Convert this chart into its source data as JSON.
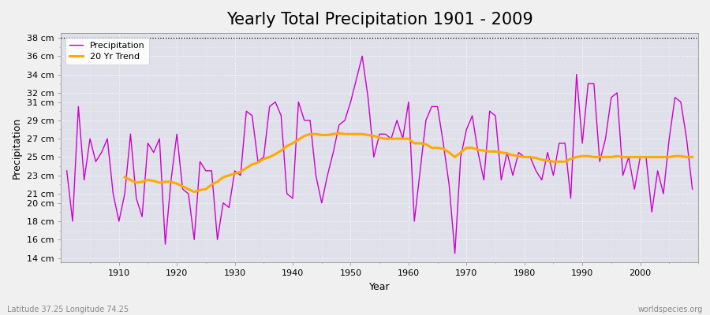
{
  "title": "Yearly Total Precipitation 1901 - 2009",
  "xlabel": "Year",
  "ylabel": "Precipitation",
  "subtitle_left": "Latitude 37.25 Longitude 74.25",
  "subtitle_right": "worldspecies.org",
  "years": [
    1901,
    1902,
    1903,
    1904,
    1905,
    1906,
    1907,
    1908,
    1909,
    1910,
    1911,
    1912,
    1913,
    1914,
    1915,
    1916,
    1917,
    1918,
    1919,
    1920,
    1921,
    1922,
    1923,
    1924,
    1925,
    1926,
    1927,
    1928,
    1929,
    1930,
    1931,
    1932,
    1933,
    1934,
    1935,
    1936,
    1937,
    1938,
    1939,
    1940,
    1941,
    1942,
    1943,
    1944,
    1945,
    1946,
    1947,
    1948,
    1949,
    1950,
    1951,
    1952,
    1953,
    1954,
    1955,
    1956,
    1957,
    1958,
    1959,
    1960,
    1961,
    1962,
    1963,
    1964,
    1965,
    1966,
    1967,
    1968,
    1969,
    1970,
    1971,
    1972,
    1973,
    1974,
    1975,
    1976,
    1977,
    1978,
    1979,
    1980,
    1981,
    1982,
    1983,
    1984,
    1985,
    1986,
    1987,
    1988,
    1989,
    1990,
    1991,
    1992,
    1993,
    1994,
    1995,
    1996,
    1997,
    1998,
    1999,
    2000,
    2001,
    2002,
    2003,
    2004,
    2005,
    2006,
    2007,
    2008,
    2009
  ],
  "precipitation": [
    23.5,
    18.0,
    30.5,
    22.5,
    27.0,
    24.5,
    25.5,
    27.0,
    21.0,
    18.0,
    21.0,
    27.5,
    20.5,
    18.5,
    26.5,
    25.5,
    27.0,
    15.5,
    22.5,
    27.5,
    21.5,
    21.0,
    16.0,
    24.5,
    23.5,
    23.5,
    16.0,
    20.0,
    19.5,
    23.5,
    23.0,
    30.0,
    29.5,
    24.5,
    25.0,
    30.5,
    31.0,
    29.5,
    21.0,
    20.5,
    31.0,
    29.0,
    29.0,
    23.0,
    20.0,
    23.0,
    25.5,
    28.5,
    29.0,
    31.0,
    33.5,
    36.0,
    31.5,
    25.0,
    27.5,
    27.5,
    27.0,
    29.0,
    27.0,
    31.0,
    18.0,
    23.5,
    29.0,
    30.5,
    30.5,
    26.5,
    22.0,
    14.5,
    25.0,
    28.0,
    29.5,
    25.5,
    22.5,
    30.0,
    29.5,
    22.5,
    25.5,
    23.0,
    25.5,
    25.0,
    25.0,
    23.5,
    22.5,
    25.5,
    23.0,
    26.5,
    26.5,
    20.5,
    34.0,
    26.5,
    33.0,
    33.0,
    24.5,
    27.0,
    31.5,
    32.0,
    23.0,
    25.0,
    21.5,
    25.0,
    25.0,
    19.0,
    23.5,
    21.0,
    27.0,
    31.5,
    31.0,
    27.0,
    21.5
  ],
  "trend": [
    null,
    null,
    null,
    null,
    null,
    null,
    null,
    null,
    null,
    null,
    22.8,
    22.5,
    22.2,
    22.3,
    22.5,
    22.4,
    22.2,
    22.3,
    22.3,
    22.1,
    21.8,
    21.5,
    21.2,
    21.4,
    21.5,
    22.0,
    22.3,
    22.8,
    23.0,
    23.2,
    23.4,
    23.8,
    24.2,
    24.4,
    24.8,
    25.0,
    25.3,
    25.7,
    26.2,
    26.5,
    26.9,
    27.3,
    27.5,
    27.5,
    27.4,
    27.4,
    27.5,
    27.6,
    27.5,
    27.5,
    27.5,
    27.5,
    27.4,
    27.3,
    27.1,
    27.0,
    27.0,
    27.0,
    27.0,
    27.0,
    26.5,
    26.5,
    26.4,
    26.0,
    26.0,
    25.9,
    25.5,
    25.0,
    25.5,
    26.0,
    26.0,
    25.8,
    25.7,
    25.6,
    25.6,
    25.5,
    25.4,
    25.2,
    25.1,
    25.0,
    25.0,
    24.9,
    24.7,
    24.6,
    24.5,
    24.5,
    24.5,
    24.8,
    25.0,
    25.1,
    25.1,
    25.0,
    25.0,
    25.0,
    25.0,
    25.1,
    25.0,
    25.0,
    25.0,
    25.0,
    25.0,
    25.0,
    25.0,
    25.0,
    25.0,
    25.1,
    25.1,
    25.0,
    25.0
  ],
  "precip_color": "#cc00cc",
  "trend_color": "#ffaa00",
  "bg_color": "#f0f0f0",
  "plot_bg": "#e0e0ea",
  "ylim": [
    13.5,
    38.5
  ],
  "yticks": [
    14,
    16,
    18,
    20,
    21,
    23,
    25,
    27,
    29,
    31,
    32,
    34,
    36,
    38
  ],
  "xlim": [
    1900,
    2010
  ],
  "xticks": [
    1910,
    1920,
    1930,
    1940,
    1950,
    1960,
    1970,
    1980,
    1990,
    2000
  ],
  "hline_y": 38,
  "title_fontsize": 15,
  "axis_label_fontsize": 9,
  "tick_fontsize": 8
}
